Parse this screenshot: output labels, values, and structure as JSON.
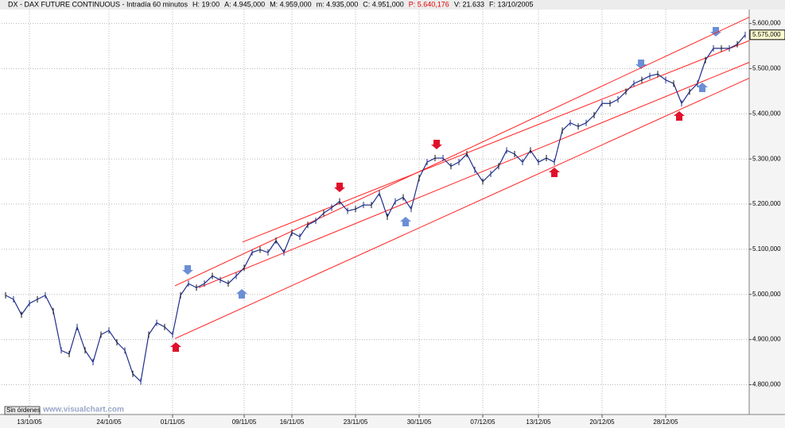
{
  "header": {
    "symbol": "DX - DAX FUTURE CONTINUOUS - Intradía 60 minutos",
    "fields": [
      "H: 19:00",
      "A: 4.945,000",
      "M: 4.959,000",
      "m: 4.935,000",
      "C: 4.951,000",
      "P: 5.640,176",
      "V: 21.633",
      "F: 13/10/2005"
    ]
  },
  "chart_data": {
    "type": "line",
    "color": "#1f2f8a",
    "grid": true,
    "categories": [
      null,
      null,
      null,
      "13/10/05",
      null,
      null,
      null,
      null,
      null,
      null,
      null,
      null,
      null,
      "24/10/05",
      null,
      null,
      null,
      null,
      null,
      null,
      null,
      "01/11/05",
      null,
      null,
      null,
      null,
      null,
      null,
      null,
      null,
      "09/11/05",
      null,
      null,
      null,
      null,
      null,
      "16/11/05",
      null,
      null,
      null,
      null,
      null,
      null,
      null,
      "23/11/05",
      null,
      null,
      null,
      null,
      null,
      null,
      null,
      "30/11/05",
      null,
      null,
      null,
      null,
      null,
      null,
      null,
      "07/12/05",
      null,
      null,
      null,
      null,
      null,
      null,
      "13/12/05",
      null,
      null,
      null,
      null,
      null,
      null,
      null,
      "20/12/05",
      null,
      null,
      null,
      null,
      null,
      null,
      null,
      "28/12/05",
      null,
      null,
      null,
      null,
      null,
      null,
      null,
      null,
      null,
      null
    ],
    "values": [
      4998,
      4989,
      4955,
      4980,
      4989,
      4998,
      4963,
      4876,
      4868,
      4928,
      4876,
      4850,
      4911,
      4920,
      4894,
      4876,
      4824,
      4807,
      4911,
      4937,
      4928,
      4911,
      4998,
      5024,
      5015,
      5024,
      5041,
      5032,
      5024,
      5041,
      5059,
      5093,
      5099,
      5093,
      5119,
      5093,
      5137,
      5128,
      5154,
      5163,
      5180,
      5192,
      5206,
      5185,
      5189,
      5198,
      5198,
      5224,
      5172,
      5206,
      5215,
      5189,
      5258,
      5293,
      5302,
      5302,
      5284,
      5293,
      5311,
      5276,
      5250,
      5267,
      5284,
      5319,
      5311,
      5293,
      5319,
      5293,
      5302,
      5293,
      5363,
      5380,
      5372,
      5380,
      5397,
      5423,
      5423,
      5432,
      5449,
      5467,
      5475,
      5484,
      5488,
      5475,
      5467,
      5423,
      5449,
      5467,
      5519,
      5545,
      5545,
      5545,
      5554,
      5575
    ],
    "ylim": [
      4734,
      5631
    ],
    "yticks": [
      {
        "value": 4800,
        "label": "4.800,000"
      },
      {
        "value": 4900,
        "label": "4.900,000"
      },
      {
        "value": 5000,
        "label": "5.000,000"
      },
      {
        "value": 5100,
        "label": "5.100,000"
      },
      {
        "value": 5200,
        "label": "5.200,000"
      },
      {
        "value": 5300,
        "label": "5.300,000"
      },
      {
        "value": 5400,
        "label": "5.400,000"
      },
      {
        "value": 5500,
        "label": "5.500,000"
      },
      {
        "value": 5600,
        "label": "5.600,000"
      }
    ],
    "last_price": {
      "value": 5575,
      "label": "5.575,000"
    },
    "channel_lines": [
      {
        "color": "#ff2020",
        "start": 5019,
        "end": 5614
      },
      {
        "color": "#ff2020",
        "start": 5116,
        "end": 5562
      },
      {
        "color": "#ff2020",
        "start": 5015,
        "end": 5514
      },
      {
        "color": "#ff2020",
        "start": 4902,
        "end": 5479
      }
    ]
  },
  "footer": {
    "status": "Sin órdenes",
    "url": "www.visualchart.com"
  }
}
